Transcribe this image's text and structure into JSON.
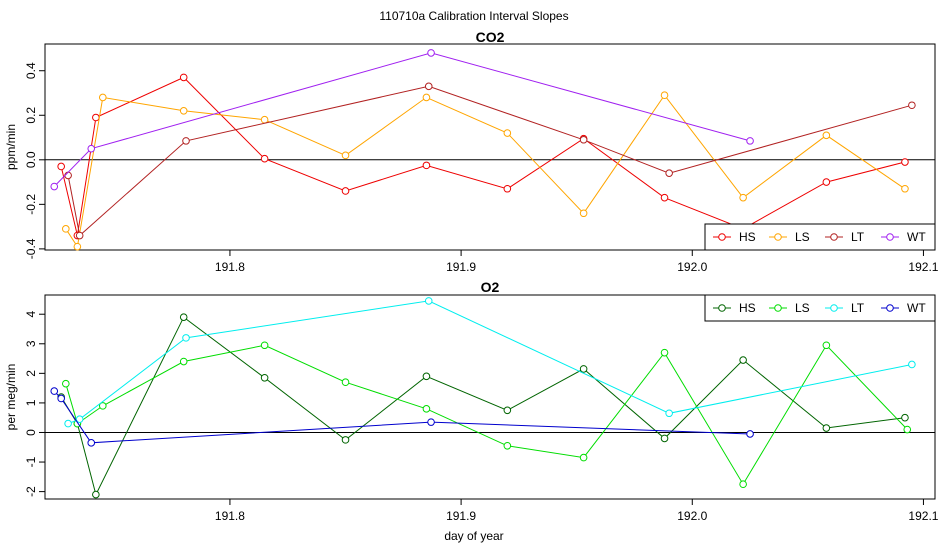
{
  "suptitle": "110710a   Calibration Interval Slopes",
  "xlabel": "day of year",
  "chart_data": [
    {
      "type": "line",
      "title": "CO2",
      "ylabel": "ppm/min",
      "xlim": [
        191.72,
        192.105
      ],
      "ylim": [
        -0.405,
        0.52
      ],
      "xticks": [
        191.8,
        191.9,
        192.0,
        192.1
      ],
      "xtick_labels": [
        "191.8",
        "191.9",
        "192.0",
        "192.1"
      ],
      "yticks": [
        -0.4,
        -0.2,
        0.0,
        0.2,
        0.4
      ],
      "ytick_labels": [
        "-0.4",
        "-0.2",
        "0.0",
        "0.2",
        "0.4"
      ],
      "hline": 0,
      "legend": "bottom-right",
      "series": [
        {
          "name": "HS",
          "color": "#ee0000",
          "x": [
            191.727,
            191.734,
            191.742,
            191.78,
            191.815,
            191.85,
            191.885,
            191.92,
            191.953,
            191.988,
            192.022,
            192.058,
            192.092
          ],
          "y": [
            -0.03,
            -0.34,
            0.19,
            0.37,
            0.005,
            -0.14,
            -0.025,
            -0.13,
            0.095,
            -0.17,
            -0.31,
            -0.1,
            -0.01
          ]
        },
        {
          "name": "LS",
          "color": "#ffa500",
          "x": [
            191.729,
            191.734,
            191.745,
            191.78,
            191.815,
            191.85,
            191.885,
            191.92,
            191.953,
            191.988,
            192.022,
            192.058,
            192.092
          ],
          "y": [
            -0.31,
            -0.39,
            0.28,
            0.22,
            0.18,
            0.02,
            0.28,
            0.12,
            -0.24,
            0.29,
            -0.17,
            0.11,
            -0.13
          ]
        },
        {
          "name": "LT",
          "color": "#b22222",
          "x": [
            191.73,
            191.735,
            191.781,
            191.886,
            191.953,
            191.99,
            192.095
          ],
          "y": [
            -0.07,
            -0.34,
            0.085,
            0.33,
            0.09,
            -0.06,
            0.245
          ]
        },
        {
          "name": "WT",
          "color": "#a020f0",
          "x": [
            191.724,
            191.74,
            191.887,
            192.025
          ],
          "y": [
            -0.12,
            0.05,
            0.48,
            0.085
          ]
        }
      ]
    },
    {
      "type": "line",
      "title": "O2",
      "ylabel": "per meg/min",
      "xlim": [
        191.72,
        192.105
      ],
      "ylim": [
        -2.25,
        4.65
      ],
      "xticks": [
        191.8,
        191.9,
        192.0,
        192.1
      ],
      "xtick_labels": [
        "191.8",
        "191.9",
        "192.0",
        "192.1"
      ],
      "yticks": [
        -2,
        -1,
        0,
        1,
        2,
        3,
        4
      ],
      "ytick_labels": [
        "-2",
        "-1",
        "0",
        "1",
        "2",
        "3",
        "4"
      ],
      "hline": 0,
      "legend": "top-right",
      "series": [
        {
          "name": "HS",
          "color": "#006400",
          "x": [
            191.727,
            191.734,
            191.742,
            191.78,
            191.815,
            191.85,
            191.885,
            191.92,
            191.953,
            191.988,
            192.022,
            192.058,
            192.092
          ],
          "y": [
            1.2,
            0.3,
            -2.1,
            3.9,
            1.85,
            -0.25,
            1.9,
            0.75,
            2.15,
            -0.2,
            2.45,
            0.15,
            0.5
          ]
        },
        {
          "name": "LS",
          "color": "#00dd00",
          "x": [
            191.729,
            191.734,
            191.745,
            191.78,
            191.815,
            191.85,
            191.885,
            191.92,
            191.953,
            191.988,
            192.022,
            192.058,
            192.093
          ],
          "y": [
            1.65,
            0.3,
            0.9,
            2.4,
            2.95,
            1.7,
            0.8,
            -0.45,
            -0.85,
            2.7,
            -1.75,
            2.95,
            0.1
          ]
        },
        {
          "name": "LT",
          "color": "#00eeee",
          "x": [
            191.73,
            191.735,
            191.781,
            191.886,
            191.99,
            192.095
          ],
          "y": [
            0.3,
            0.45,
            3.2,
            4.45,
            0.65,
            2.3
          ]
        },
        {
          "name": "WT",
          "color": "#0000cd",
          "x": [
            191.724,
            191.727,
            191.74,
            191.887,
            192.025
          ],
          "y": [
            1.4,
            1.15,
            -0.35,
            0.35,
            -0.05
          ]
        }
      ]
    }
  ]
}
